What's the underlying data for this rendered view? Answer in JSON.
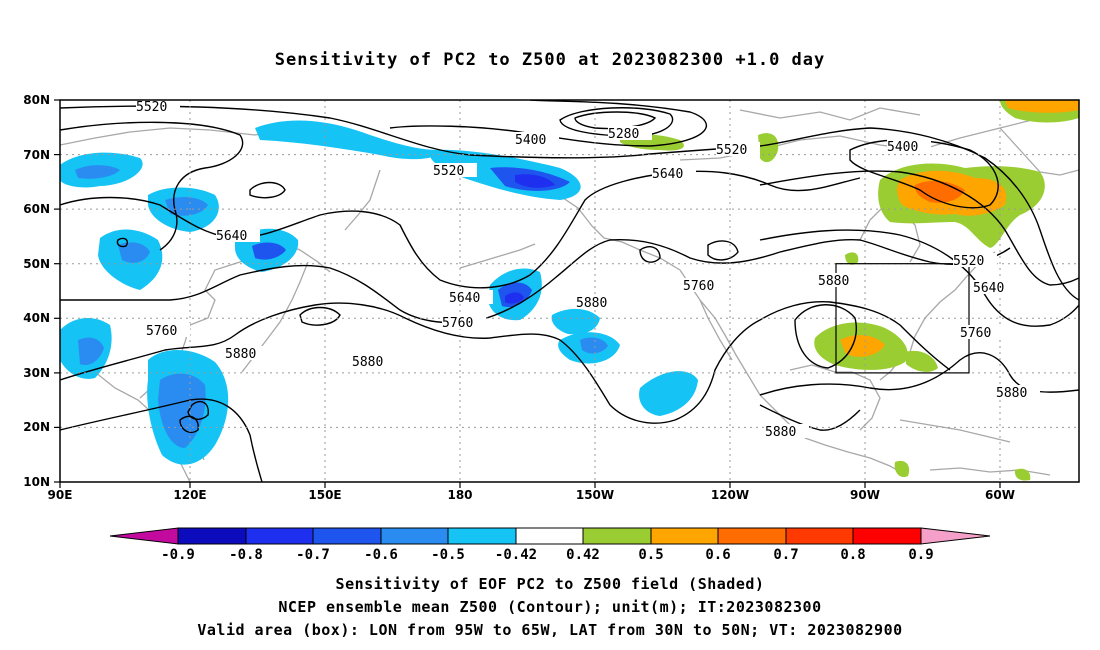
{
  "title": "Sensitivity of PC2 to Z500 at 2023082300 +1.0 day",
  "lat_labels": [
    "80N",
    "70N",
    "60N",
    "50N",
    "40N",
    "30N",
    "20N",
    "10N"
  ],
  "lon_labels": [
    "90E",
    "120E",
    "150E",
    "180",
    "150W",
    "120W",
    "90W",
    "60W"
  ],
  "colorbar": {
    "labels": [
      "-0.9",
      "-0.8",
      "-0.7",
      "-0.6",
      "-0.5",
      "-0.42",
      "0.42",
      "0.5",
      "0.6",
      "0.7",
      "0.8",
      "0.9"
    ],
    "colors": [
      "#c20a9e",
      "#0c0cbe",
      "#1f2ff0",
      "#1e55ee",
      "#2a8cf0",
      "#15c3f5",
      "#ffffff",
      "#9acd32",
      "#ffa500",
      "#ff6d00",
      "#ff3a00",
      "#ff0000",
      "#f5a0c8"
    ]
  },
  "contour_labels": {
    "c5520_nw": "5520",
    "c5400_n": "5400",
    "c5280": "5280",
    "c5520_n": "5520",
    "c5520_mid": "5520",
    "c5640_mid": "5640",
    "c5400_ne": "5400",
    "c5640_w": "5640",
    "c5640_180": "5640",
    "c5760_180": "5760",
    "c5880_160w": "5880",
    "c5760_125w": "5760",
    "c5880_90w": "5880",
    "c5520_65w": "5520",
    "c5640_60w": "5640",
    "c5760_65w": "5760",
    "c5880_60w": "5880",
    "c5880_110w": "5880",
    "c5760_w": "5760",
    "c5880_w": "5880",
    "c5880_140e": "5880"
  },
  "footer": {
    "line1": "Sensitivity of EOF PC2 to Z500 field (Shaded)",
    "line2": "NCEP ensemble mean Z500 (Contour); unit(m); IT:2023082300",
    "line3": "Valid area (box): LON from 95W to 65W, LAT from 30N to 50N; VT: 2023082900"
  }
}
